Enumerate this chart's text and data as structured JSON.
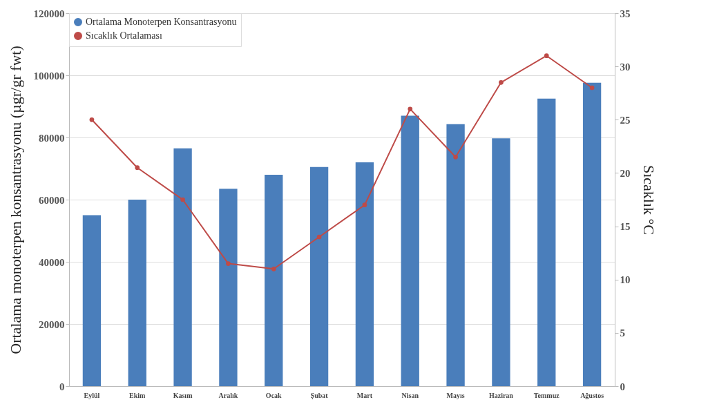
{
  "chart_data": {
    "type": "bar",
    "ylabel": "Ortalama monoterpen konsantrasyonu (µgr/gr fwt)",
    "y2label": "Sıcaklık °C",
    "categories": [
      "Eylül",
      "Ekim",
      "Kasım",
      "Aralık",
      "Ocak",
      "Şubat",
      "Mart",
      "Nisan",
      "Mayıs",
      "Haziran",
      "Temmuz",
      "Ağustos"
    ],
    "series": [
      {
        "name": "Ortalama Monoterpen Konsantrasyonu",
        "type": "bar",
        "color": "#4a7ebb",
        "values": [
          55000,
          60000,
          76500,
          63500,
          68000,
          70500,
          72000,
          87000,
          84300,
          79700,
          92500,
          97600
        ]
      },
      {
        "name": "Sıcaklık Ortalaması",
        "type": "line",
        "axis": "y2",
        "color": "#be4b48",
        "marker": "circle",
        "values": [
          25,
          20.5,
          17.5,
          11.5,
          11,
          14,
          17,
          26,
          21.5,
          28.5,
          31,
          28
        ]
      }
    ],
    "ylim": [
      0,
      120000
    ],
    "yticks": [
      0,
      20000,
      40000,
      60000,
      80000,
      100000,
      120000
    ],
    "y2lim": [
      0,
      35
    ],
    "y2ticks": [
      0,
      5,
      10,
      15,
      20,
      25,
      30,
      35
    ],
    "grid": "y",
    "legend": "top left"
  }
}
